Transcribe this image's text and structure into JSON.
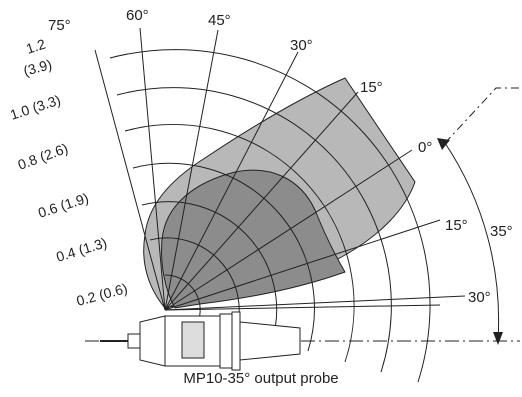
{
  "diagram": {
    "top_angle_labels": [
      "75°",
      "60°",
      "45°",
      "30°",
      "15°"
    ],
    "range_labels": [
      "1.2",
      "(3.9)",
      "1.0 (3.3)",
      "0.8 (2.6)",
      "0.6 (1.9)",
      "0.4 (1.3)",
      "0.2 (0.6)"
    ],
    "right_angle_labels": [
      "0°",
      "15°",
      "30°"
    ],
    "tilt_label": "35°",
    "caption": "MP10-35° output probe",
    "colors": {
      "outer_lobe": "#b8b8b8",
      "inner_lobe": "#8c8c8c",
      "grid": "#222222"
    }
  }
}
